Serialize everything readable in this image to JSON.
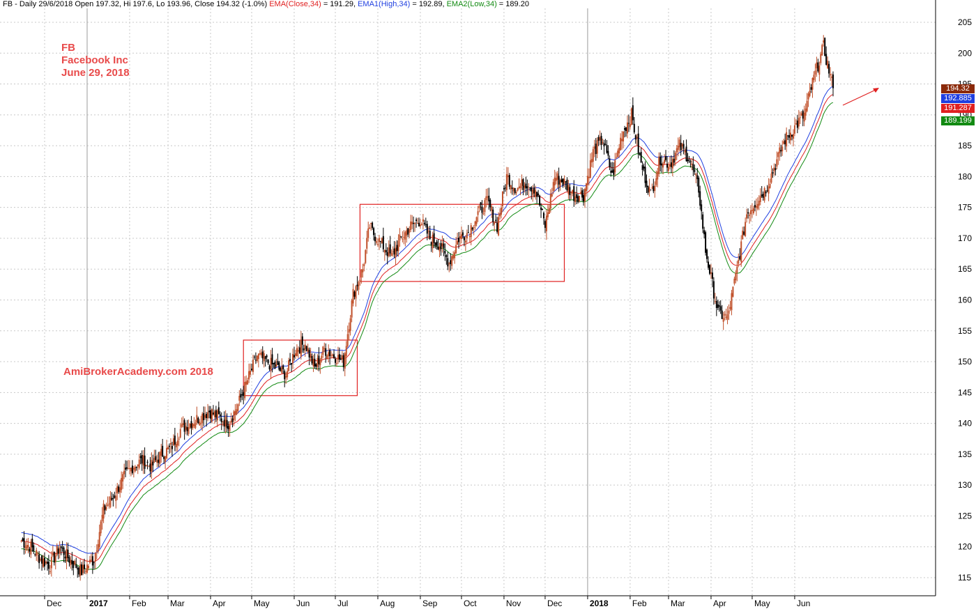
{
  "header": {
    "symbol_line": "FB - Daily 29/6/2018 Open 197.32, Hi 197.6, Lo 193.96, Close 194.32 (-1.0%)",
    "ema_label": "EMA(Close,34)",
    "ema_value": " = 191.29,",
    "ema1_label": "EMA1(High,34)",
    "ema1_value": " = 192.89,",
    "ema2_label": "EMA2(Low,34)",
    "ema2_value": " = 189.20"
  },
  "annotations": {
    "symbol": "FB",
    "company": "Facebook Inc",
    "date": "June 29, 2018",
    "watermark": "AmiBrokerAcademy.com   2018"
  },
  "last_values": {
    "close": "194.32",
    "ema_high": "192.885",
    "ema_close": "191.287",
    "ema_low": "189.199"
  },
  "colors": {
    "up_candle": "#c0502a",
    "down_candle": "#000000",
    "ema_close": "#e02020",
    "ema_high": "#1f3fe0",
    "ema_low": "#128a12",
    "box": "#e02020",
    "close_badge": "#8b2a0a",
    "grid": "#c8c8c8"
  },
  "chart_data": {
    "type": "candlestick",
    "title": "FB - Daily",
    "ylim": [
      112,
      208
    ],
    "y_ticks": [
      115,
      120,
      125,
      130,
      135,
      140,
      145,
      150,
      155,
      160,
      165,
      170,
      175,
      180,
      185,
      190,
      195,
      200,
      205
    ],
    "x_tick_labels": [
      "Dec",
      "2017",
      "Feb",
      "Mar",
      "Apr",
      "May",
      "Jun",
      "Jul",
      "Aug",
      "Sep",
      "Oct",
      "Nov",
      "Dec",
      "2018",
      "Feb",
      "Mar",
      "Apr",
      "May",
      "Jun"
    ],
    "x_tick_dates": [
      "2016-12-01",
      "2017-01-01",
      "2017-02-01",
      "2017-03-01",
      "2017-04-01",
      "2017-05-01",
      "2017-06-01",
      "2017-07-01",
      "2017-08-01",
      "2017-09-01",
      "2017-10-01",
      "2017-11-01",
      "2017-12-01",
      "2018-01-01",
      "2018-02-01",
      "2018-03-01",
      "2018-04-01",
      "2018-05-01",
      "2018-06-01"
    ],
    "close_series": {
      "dates": [
        "2016-11-14",
        "2016-11-21",
        "2016-11-28",
        "2016-12-05",
        "2016-12-12",
        "2016-12-19",
        "2016-12-28",
        "2017-01-06",
        "2017-01-13",
        "2017-01-20",
        "2017-01-27",
        "2017-02-03",
        "2017-02-10",
        "2017-02-17",
        "2017-02-24",
        "2017-03-03",
        "2017-03-10",
        "2017-03-17",
        "2017-03-24",
        "2017-03-31",
        "2017-04-07",
        "2017-04-14",
        "2017-04-21",
        "2017-04-28",
        "2017-05-05",
        "2017-05-12",
        "2017-05-19",
        "2017-05-26",
        "2017-06-02",
        "2017-06-09",
        "2017-06-16",
        "2017-06-23",
        "2017-06-30",
        "2017-07-07",
        "2017-07-14",
        "2017-07-21",
        "2017-07-26",
        "2017-07-28",
        "2017-08-04",
        "2017-08-11",
        "2017-08-18",
        "2017-08-25",
        "2017-09-01",
        "2017-09-08",
        "2017-09-15",
        "2017-09-22",
        "2017-09-29",
        "2017-10-06",
        "2017-10-13",
        "2017-10-20",
        "2017-10-27",
        "2017-11-03",
        "2017-11-10",
        "2017-11-17",
        "2017-11-24",
        "2017-12-01",
        "2017-12-08",
        "2017-12-15",
        "2017-12-22",
        "2017-12-29",
        "2018-01-05",
        "2018-01-12",
        "2018-01-19",
        "2018-01-26",
        "2018-02-02",
        "2018-02-09",
        "2018-02-16",
        "2018-02-23",
        "2018-03-02",
        "2018-03-09",
        "2018-03-16",
        "2018-03-23",
        "2018-03-28",
        "2018-04-06",
        "2018-04-13",
        "2018-04-20",
        "2018-04-27",
        "2018-05-04",
        "2018-05-11",
        "2018-05-18",
        "2018-05-25",
        "2018-06-01",
        "2018-06-08",
        "2018-06-15",
        "2018-06-22",
        "2018-06-29"
      ],
      "values": [
        121,
        120,
        118,
        117,
        120,
        118,
        116,
        118,
        126,
        128,
        131,
        133,
        134,
        133,
        135,
        136,
        139,
        140,
        141,
        142,
        141,
        140,
        143,
        147,
        151,
        150,
        149,
        148,
        152,
        153,
        149,
        152,
        151,
        150,
        161,
        165,
        172,
        171,
        169,
        167,
        170,
        172,
        173,
        170,
        169,
        166,
        170,
        171,
        174,
        176,
        172,
        180,
        178,
        179,
        178,
        172,
        180,
        179,
        177,
        177,
        184,
        186,
        180,
        187,
        190,
        182,
        177,
        183,
        182,
        185,
        183,
        178,
        168,
        158,
        157,
        165,
        174,
        176,
        178,
        182,
        186,
        188,
        190,
        196,
        201,
        194.32
      ]
    },
    "ema_close_last": 191.29,
    "ema_high_last": 192.89,
    "ema_low_last": 189.2,
    "ohlc_last": {
      "date": "2018-06-29",
      "open": 197.32,
      "high": 197.6,
      "low": 193.96,
      "close": 194.32,
      "change_pct": -1.0
    },
    "boxes": [
      {
        "from": "2017-04-25",
        "to": "2017-07-17",
        "low": 144.5,
        "high": 153.5
      },
      {
        "from": "2017-07-19",
        "to": "2017-12-15",
        "low": 163,
        "high": 175.5
      }
    ],
    "grid": true
  }
}
